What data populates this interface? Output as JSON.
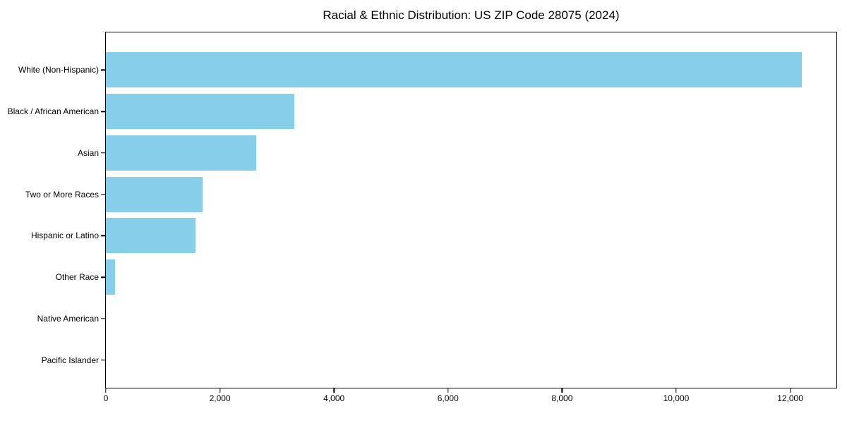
{
  "chart_data": {
    "type": "bar",
    "orientation": "horizontal",
    "title": "Racial & Ethnic Distribution: US ZIP Code 28075 (2024)",
    "categories": [
      "White (Non-Hispanic)",
      "Black / African American",
      "Asian",
      "Two or More Races",
      "Hispanic or Latino",
      "Other Race",
      "Native American",
      "Pacific Islander"
    ],
    "values": [
      12200,
      3300,
      2640,
      1700,
      1570,
      160,
      0,
      0
    ],
    "xlabel": "",
    "ylabel": "",
    "xlim": [
      0,
      12810
    ],
    "x_ticks": [
      0,
      2000,
      4000,
      6000,
      8000,
      10000,
      12000
    ],
    "x_tick_labels": [
      "0",
      "2,000",
      "4,000",
      "6,000",
      "8,000",
      "10,000",
      "12,000"
    ],
    "bar_color": "#87CEEB",
    "text_color": "#000000",
    "grid": false,
    "legend": null
  }
}
